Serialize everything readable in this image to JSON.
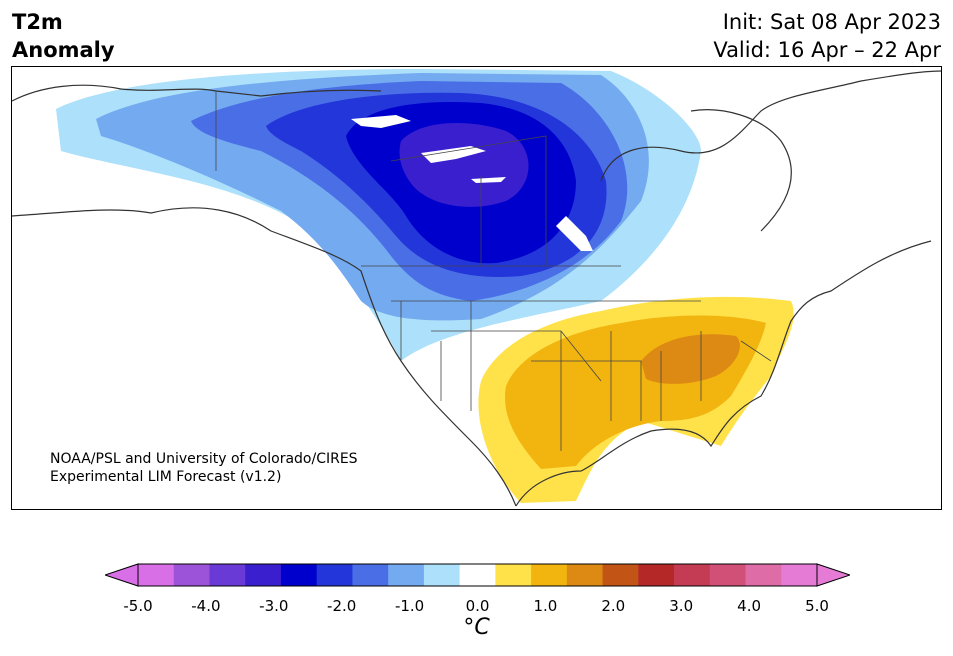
{
  "header": {
    "title_line1": "T2m",
    "title_line2": "Anomaly",
    "init": "Init: Sat 08 Apr 2023",
    "valid": "Valid: 16 Apr – 22 Apr"
  },
  "credit": {
    "line1": "NOAA/PSL and University of Colorado/CIRES",
    "line2": "Experimental LIM Forecast (v1.2)"
  },
  "colorbar": {
    "unit_label": "°C",
    "ticks": [
      "-5.0",
      "-4.0",
      "-3.0",
      "-2.0",
      "-1.0",
      "0.0",
      "1.0",
      "2.0",
      "3.0",
      "4.0",
      "5.0"
    ],
    "levels": [
      -5.0,
      -4.5,
      -4.0,
      -3.5,
      -3.0,
      -2.5,
      -2.0,
      -1.5,
      -1.0,
      -0.5,
      0.5,
      1.0,
      1.5,
      2.0,
      2.5,
      3.0,
      3.5,
      4.0,
      4.5,
      5.0
    ],
    "colors": [
      "#d96fe6",
      "#9c52d9",
      "#6a3ad6",
      "#3a1fcf",
      "#0000cd",
      "#2236d9",
      "#4a6ee6",
      "#73aaf0",
      "#ade0fa",
      "#ffffff",
      "#ffe24a",
      "#f2b50f",
      "#dc8a14",
      "#c25416",
      "#b42828",
      "#c43c54",
      "#d05078",
      "#de6ca6",
      "#e67bd6"
    ],
    "under_color": "#d96fe6",
    "over_color": "#e67bd6"
  }
}
